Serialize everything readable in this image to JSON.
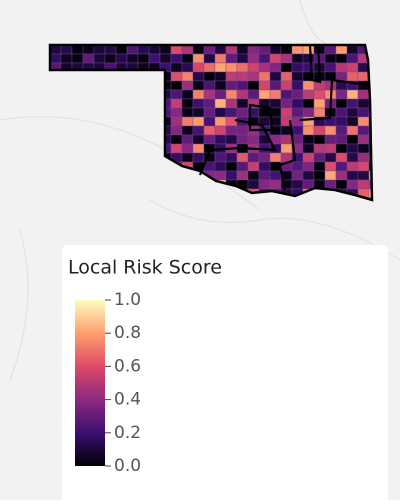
{
  "legend": {
    "title": "Local Risk Score",
    "range": [
      0,
      1
    ],
    "colors": [
      "#000004",
      "#3b0f70",
      "#8c2981",
      "#de4968",
      "#fe9f6d",
      "#fcfdbf"
    ],
    "ticks": [
      {
        "value": 0,
        "label": "0.0"
      },
      0.2,
      0.4,
      0.6,
      0.8,
      {
        "value": 1,
        "label": "1.0"
      }
    ]
  }
}
